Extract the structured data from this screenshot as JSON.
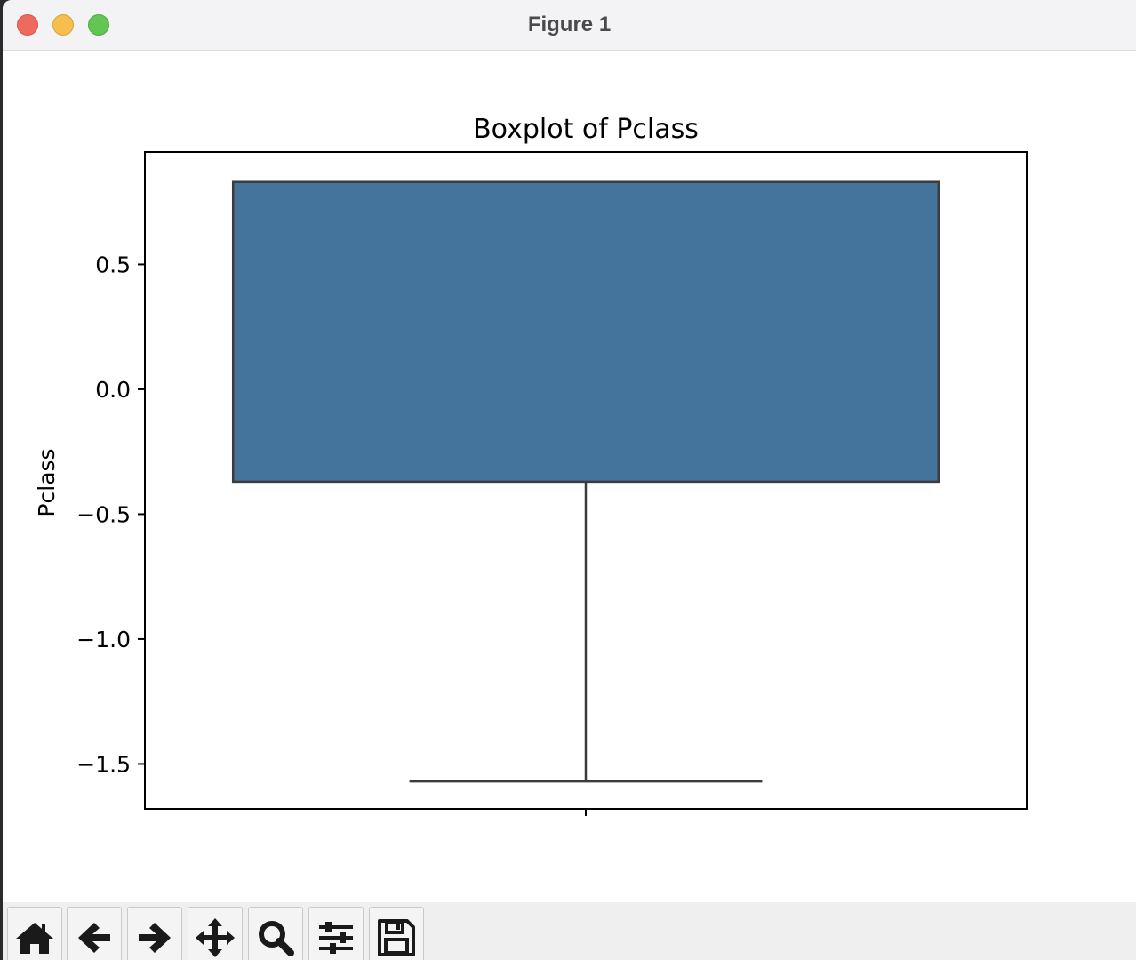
{
  "window": {
    "title": "Figure 1"
  },
  "toolbar": {
    "buttons": [
      {
        "name": "home-icon"
      },
      {
        "name": "back-arrow-icon"
      },
      {
        "name": "forward-arrow-icon"
      },
      {
        "name": "pan-move-icon"
      },
      {
        "name": "zoom-magnifier-icon"
      },
      {
        "name": "configure-subplots-icon"
      },
      {
        "name": "save-figure-icon"
      }
    ]
  },
  "colors": {
    "box_fill": "#44739c",
    "box_edge": "#3b3b3b",
    "axis": "#000000"
  },
  "chart_data": {
    "type": "boxplot",
    "title": "Boxplot of Pclass",
    "xlabel": "",
    "ylabel": "Pclass",
    "ylim": [
      -1.68,
      0.95
    ],
    "yticks": [
      0.5,
      0.0,
      -0.5,
      -1.0,
      -1.5
    ],
    "ytick_labels": [
      "0.5",
      "0.0",
      "−0.5",
      "−1.0",
      "−1.5"
    ],
    "xtick_labels": [
      ""
    ],
    "box": {
      "q1": -0.37,
      "q3": 0.83,
      "median": 0.83,
      "whisker_low": -1.57,
      "whisker_high": 0.83
    },
    "grid": false
  }
}
